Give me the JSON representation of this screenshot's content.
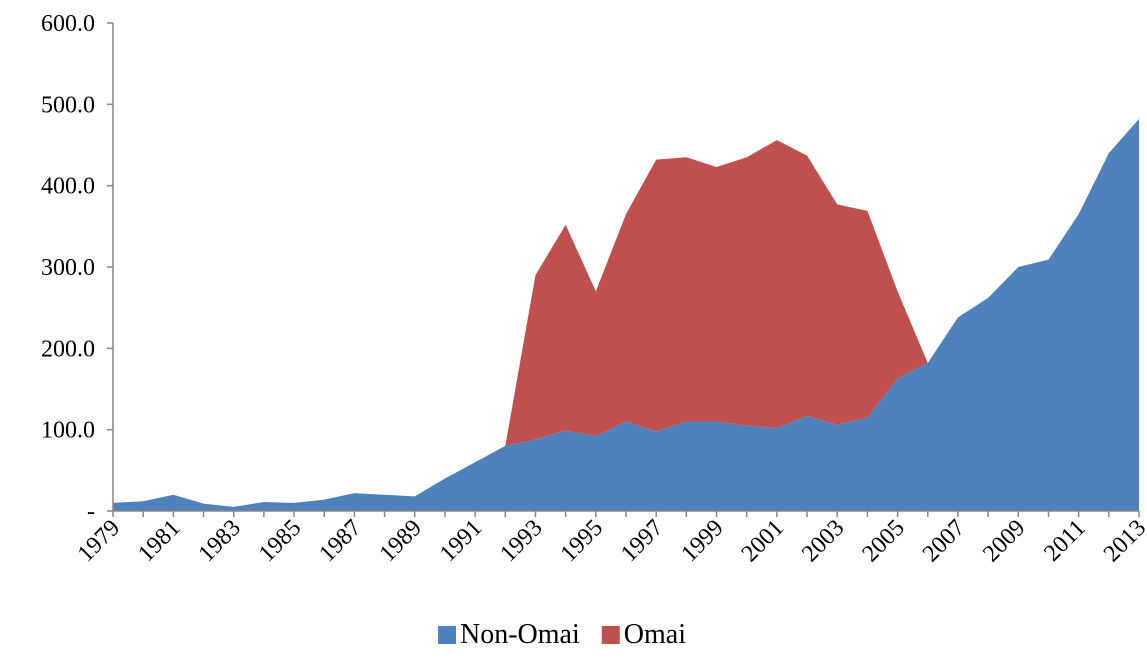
{
  "chart_data": {
    "type": "stacked_area",
    "categories": [
      "1979",
      null,
      "1981",
      null,
      "1983",
      null,
      "1985",
      null,
      "1987",
      null,
      "1989",
      null,
      "1991",
      null,
      "1993",
      null,
      "1995",
      null,
      "1997",
      null,
      "1999",
      null,
      "2001",
      null,
      "2003",
      null,
      "2005",
      null,
      "2007",
      null,
      "2009",
      null,
      "2011",
      null,
      "2013"
    ],
    "series": [
      {
        "name": "Non-Omai",
        "color": "#4f81bd",
        "values": [
          10,
          12,
          20,
          9,
          5,
          11,
          10,
          14,
          22,
          20,
          18,
          40,
          60,
          80,
          88,
          99,
          92,
          110,
          98,
          110,
          110,
          105,
          102,
          117,
          106,
          115,
          163,
          182,
          238,
          262,
          300,
          309,
          365,
          440,
          482
        ]
      },
      {
        "name": "Omai",
        "color": "#c0504d",
        "values": [
          null,
          null,
          null,
          null,
          null,
          null,
          null,
          null,
          null,
          null,
          null,
          null,
          null,
          0,
          202,
          253,
          178,
          255,
          334,
          325,
          313,
          330,
          354,
          320,
          271,
          254,
          107,
          0,
          null,
          null,
          null,
          null,
          null,
          null,
          null
        ]
      }
    ],
    "ylim": [
      0,
      600
    ],
    "yticks": [
      {
        "value": 0,
        "label": "-"
      },
      {
        "value": 100,
        "label": "100.0"
      },
      {
        "value": 200,
        "label": "200.0"
      },
      {
        "value": 300,
        "label": "300.0"
      },
      {
        "value": 400,
        "label": "400.0"
      },
      {
        "value": 500,
        "label": "500.0"
      },
      {
        "value": 600,
        "label": "600.0"
      }
    ],
    "legend": "bottom"
  }
}
